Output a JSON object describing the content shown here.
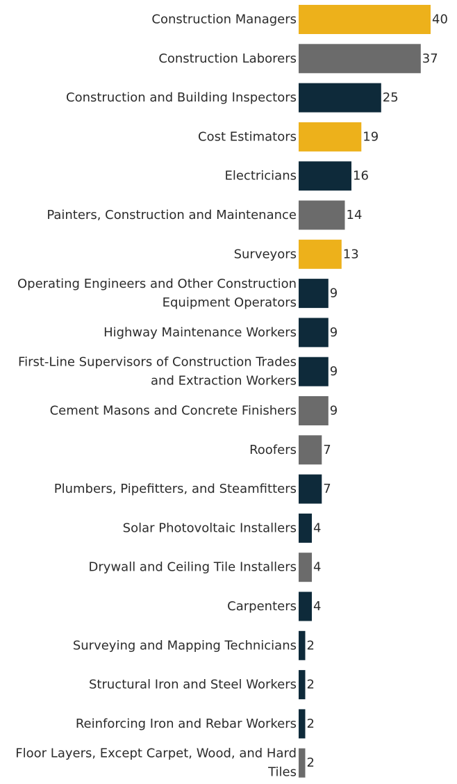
{
  "chart_data": {
    "type": "bar",
    "orientation": "horizontal",
    "title": "",
    "xlabel": "",
    "ylabel": "",
    "xlim": [
      0,
      40
    ],
    "grid": false,
    "categories": [
      [
        "Construction Managers"
      ],
      [
        "Construction Laborers"
      ],
      [
        "Construction and Building Inspectors"
      ],
      [
        "Cost Estimators"
      ],
      [
        "Electricians"
      ],
      [
        "Painters, Construction and Maintenance"
      ],
      [
        "Surveyors"
      ],
      [
        "Operating Engineers and Other Construction",
        "Equipment Operators"
      ],
      [
        "Highway Maintenance Workers"
      ],
      [
        "First-Line Supervisors of Construction Trades",
        "and Extraction Workers"
      ],
      [
        "Cement Masons and Concrete Finishers"
      ],
      [
        "Roofers"
      ],
      [
        "Plumbers, Pipefitters, and Steamfitters"
      ],
      [
        "Solar Photovoltaic Installers"
      ],
      [
        "Drywall and Ceiling Tile Installers"
      ],
      [
        "Carpenters"
      ],
      [
        "Surveying and Mapping Technicians"
      ],
      [
        "Structural Iron and Steel Workers"
      ],
      [
        "Reinforcing Iron and Rebar Workers"
      ],
      [
        "Floor Layers, Except Carpet, Wood, and Hard",
        "Tiles"
      ]
    ],
    "values": [
      40,
      37,
      25,
      19,
      16,
      14,
      13,
      9,
      9,
      9,
      9,
      7,
      7,
      4,
      4,
      4,
      2,
      2,
      2,
      2
    ],
    "color_groups": [
      "gold",
      "gray",
      "navy",
      "gold",
      "navy",
      "gray",
      "gold",
      "navy",
      "navy",
      "navy",
      "gray",
      "gray",
      "navy",
      "navy",
      "gray",
      "navy",
      "navy",
      "navy",
      "navy",
      "gray"
    ],
    "colors": {
      "gold": "#EDB11B",
      "gray": "#6B6B6B",
      "navy": "#0E2A3A"
    }
  }
}
